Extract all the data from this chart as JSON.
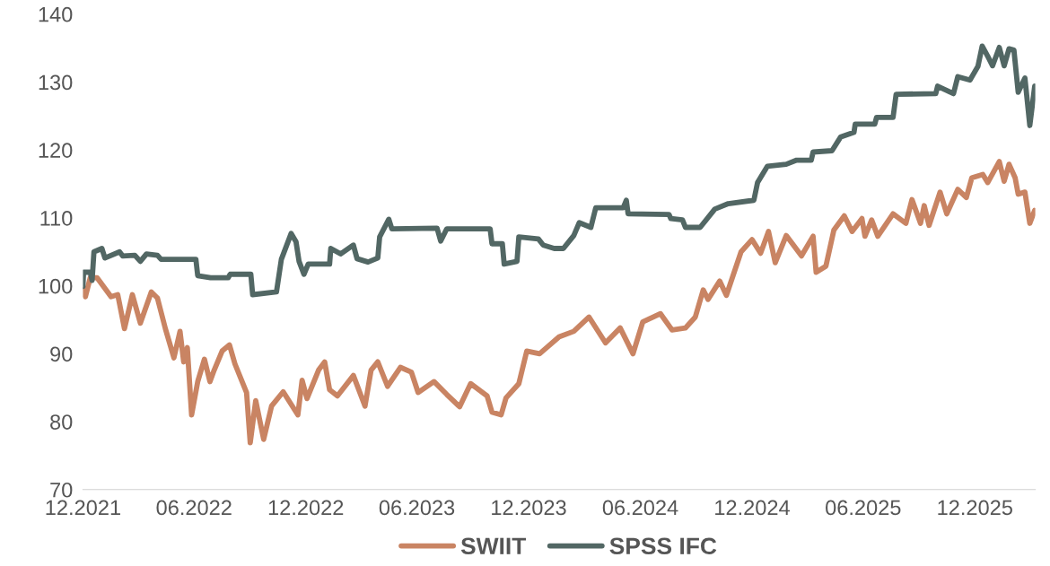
{
  "chart_data": {
    "type": "line",
    "legend": "bottom",
    "grid": false,
    "line_style": "solid",
    "marker": "none",
    "xlim": [
      "2021-12-01",
      "2026-03-10"
    ],
    "xticks": [
      {
        "value": "2021-12-01",
        "label": "12.2021"
      },
      {
        "value": "2022-06-01",
        "label": "06.2022"
      },
      {
        "value": "2022-12-01",
        "label": "12.2022"
      },
      {
        "value": "2023-06-01",
        "label": "06.2023"
      },
      {
        "value": "2023-12-01",
        "label": "12.2023"
      },
      {
        "value": "2024-06-01",
        "label": "06.2024"
      },
      {
        "value": "2024-12-01",
        "label": "12.2024"
      },
      {
        "value": "2025-06-01",
        "label": "06.2025"
      },
      {
        "value": "2025-12-01",
        "label": "12.2025"
      }
    ],
    "ylim": [
      70,
      140
    ],
    "yticks": [
      70,
      80,
      90,
      100,
      110,
      120,
      130,
      140
    ],
    "series": [
      {
        "name": "SWIIT",
        "color": "#c98463",
        "x": [
          "2021-12-01",
          "2021-12-05",
          "2021-12-13",
          "2021-12-24",
          "2022-01-16",
          "2022-01-27",
          "2022-02-07",
          "2022-02-20",
          "2022-03-05",
          "2022-03-23",
          "2022-04-02",
          "2022-04-15",
          "2022-04-29",
          "2022-05-09",
          "2022-05-15",
          "2022-05-21",
          "2022-05-28",
          "2022-06-07",
          "2022-06-18",
          "2022-06-27",
          "2022-07-04",
          "2022-07-17",
          "2022-07-29",
          "2022-08-07",
          "2022-08-20",
          "2022-08-26",
          "2022-09-01",
          "2022-09-10",
          "2022-09-23",
          "2022-10-06",
          "2022-10-25",
          "2022-11-18",
          "2022-11-25",
          "2022-12-03",
          "2022-12-22",
          "2023-01-01",
          "2023-01-09",
          "2023-01-22",
          "2023-02-17",
          "2023-03-08",
          "2023-03-18",
          "2023-03-29",
          "2023-04-14",
          "2023-05-05",
          "2023-05-23",
          "2023-06-03",
          "2023-06-29",
          "2023-07-20",
          "2023-08-10",
          "2023-08-28",
          "2023-09-24",
          "2023-10-02",
          "2023-10-17",
          "2023-10-25",
          "2023-11-15",
          "2023-11-28",
          "2023-12-19",
          "2024-01-20",
          "2024-02-13",
          "2024-03-09",
          "2024-04-05",
          "2024-04-29",
          "2024-05-20",
          "2024-06-05",
          "2024-07-04",
          "2024-07-23",
          "2024-08-14",
          "2024-08-30",
          "2024-09-12",
          "2024-09-20",
          "2024-10-09",
          "2024-10-20",
          "2024-11-13",
          "2024-12-01",
          "2024-12-15",
          "2024-12-28",
          "2025-01-08",
          "2025-01-26",
          "2025-02-20",
          "2025-03-11",
          "2025-03-16",
          "2025-04-01",
          "2025-04-14",
          "2025-05-01",
          "2025-05-14",
          "2025-05-30",
          "2025-06-04",
          "2025-06-15",
          "2025-06-25",
          "2025-07-20",
          "2025-08-10",
          "2025-08-20",
          "2025-09-03",
          "2025-09-09",
          "2025-09-17",
          "2025-10-05",
          "2025-10-16",
          "2025-11-03",
          "2025-11-17",
          "2025-11-26",
          "2025-12-14",
          "2025-12-22",
          "2026-01-10",
          "2026-01-18",
          "2026-01-26",
          "2026-02-05",
          "2026-02-10",
          "2026-02-21",
          "2026-03-01",
          "2026-03-09"
        ],
        "values": [
          99.4,
          98.4,
          101.2,
          101.2,
          98.4,
          98.7,
          93.7,
          98.7,
          94.5,
          99.1,
          98.2,
          93.7,
          89.4,
          93.3,
          88.8,
          90.9,
          81.0,
          85.9,
          89.2,
          85.9,
          87.6,
          90.4,
          91.3,
          88.5,
          85.6,
          84.3,
          76.9,
          83.1,
          77.4,
          82.3,
          84.4,
          81.0,
          86.1,
          83.4,
          87.6,
          88.8,
          84.7,
          83.8,
          86.8,
          82.3,
          87.6,
          88.8,
          85.2,
          88.0,
          87.3,
          84.3,
          85.9,
          84.0,
          82.2,
          85.6,
          83.8,
          81.4,
          81.0,
          83.5,
          85.6,
          90.4,
          90.0,
          92.5,
          93.3,
          95.4,
          91.6,
          93.8,
          90.0,
          94.7,
          95.9,
          93.5,
          93.8,
          95.4,
          99.4,
          98.0,
          100.7,
          98.6,
          105.0,
          106.8,
          104.8,
          108.0,
          103.4,
          107.4,
          104.4,
          107.3,
          102.0,
          102.9,
          108.2,
          110.3,
          108.0,
          109.9,
          107.3,
          109.7,
          107.3,
          110.6,
          109.2,
          112.7,
          109.2,
          111.8,
          108.9,
          113.8,
          110.6,
          114.2,
          113.0,
          115.9,
          116.4,
          115.2,
          118.3,
          115.4,
          117.9,
          115.9,
          113.5,
          113.8,
          109.2,
          111.1
        ]
      },
      {
        "name": "SPSS IFC",
        "color": "#526764",
        "x": [
          "2021-12-01",
          "2021-12-02",
          "2021-12-13",
          "2021-12-16",
          "2021-12-19",
          "2022-01-01",
          "2022-01-06",
          "2022-01-30",
          "2022-02-04",
          "2022-02-24",
          "2022-03-05",
          "2022-03-15",
          "2022-04-02",
          "2022-04-08",
          "2022-06-04",
          "2022-06-07",
          "2022-06-28",
          "2022-07-27",
          "2022-07-30",
          "2022-09-02",
          "2022-09-05",
          "2022-10-14",
          "2022-10-22",
          "2022-11-07",
          "2022-11-15",
          "2022-11-20",
          "2022-11-28",
          "2022-12-05",
          "2023-01-09",
          "2023-01-11",
          "2023-01-27",
          "2023-02-17",
          "2023-02-23",
          "2023-03-13",
          "2023-03-29",
          "2023-04-01",
          "2023-04-16",
          "2023-04-21",
          "2023-07-04",
          "2023-07-10",
          "2023-07-20",
          "2023-09-29",
          "2023-10-02",
          "2023-10-19",
          "2023-10-22",
          "2023-11-12",
          "2023-11-15",
          "2023-12-17",
          "2023-12-25",
          "2024-01-12",
          "2024-01-27",
          "2024-02-13",
          "2024-02-22",
          "2024-03-12",
          "2024-03-20",
          "2024-05-04",
          "2024-05-09",
          "2024-05-12",
          "2024-07-18",
          "2024-07-21",
          "2024-08-09",
          "2024-08-14",
          "2024-09-07",
          "2024-10-01",
          "2024-10-23",
          "2024-12-04",
          "2024-12-10",
          "2024-12-26",
          "2025-01-26",
          "2025-02-12",
          "2025-03-08",
          "2025-03-11",
          "2025-04-11",
          "2025-04-25",
          "2025-05-17",
          "2025-05-19",
          "2025-06-20",
          "2025-06-23",
          "2025-07-20",
          "2025-07-25",
          "2025-09-28",
          "2025-10-01",
          "2025-10-27",
          "2025-11-03",
          "2025-11-23",
          "2025-12-06",
          "2025-12-13",
          "2025-12-22",
          "2025-12-30",
          "2026-01-10",
          "2026-01-18",
          "2026-01-26",
          "2026-02-03",
          "2026-02-10",
          "2026-02-21",
          "2026-03-01",
          "2026-03-09"
        ],
        "values": [
          99.9,
          102.0,
          102.0,
          100.8,
          105.0,
          105.5,
          104.1,
          105.0,
          104.4,
          104.5,
          103.6,
          104.7,
          104.5,
          103.9,
          103.9,
          101.5,
          101.2,
          101.2,
          101.7,
          101.7,
          98.7,
          99.1,
          103.9,
          107.7,
          106.5,
          103.6,
          101.7,
          103.2,
          103.2,
          105.5,
          104.7,
          106.0,
          104.0,
          103.5,
          104.1,
          107.2,
          109.8,
          108.4,
          108.5,
          106.6,
          108.4,
          108.4,
          106.2,
          106.2,
          103.2,
          103.6,
          107.2,
          106.9,
          106.0,
          105.5,
          105.5,
          107.4,
          109.3,
          108.6,
          111.5,
          111.5,
          112.6,
          110.6,
          110.5,
          109.9,
          109.7,
          108.6,
          108.6,
          111.3,
          112.1,
          112.6,
          115.2,
          117.6,
          117.9,
          118.5,
          118.5,
          119.7,
          119.9,
          121.9,
          122.6,
          123.8,
          123.8,
          124.8,
          124.8,
          128.2,
          128.3,
          129.4,
          128.3,
          130.8,
          130.3,
          132.3,
          135.3,
          133.8,
          132.4,
          135.1,
          132.4,
          134.9,
          134.7,
          128.5,
          130.6,
          123.6,
          129.4
        ]
      }
    ]
  }
}
